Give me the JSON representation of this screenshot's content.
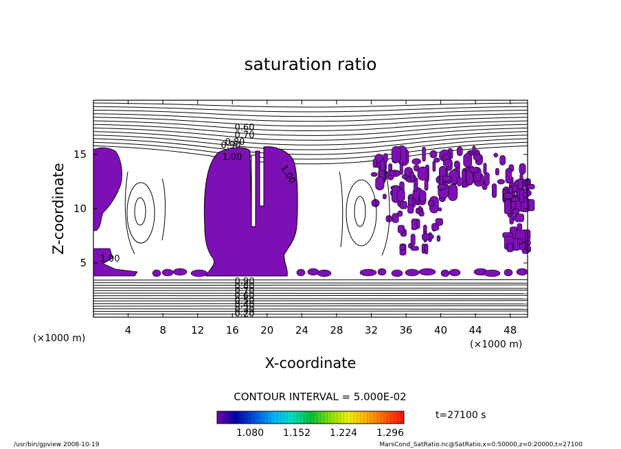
{
  "chart_data": {
    "type": "contour",
    "title": "saturation ratio",
    "xlabel": "X-coordinate",
    "ylabel": "Z-coordinate",
    "x_unit_left": "(×1000 m)",
    "x_unit_right": "(×1000 m)",
    "xlim": [
      0,
      50
    ],
    "ylim": [
      0,
      20
    ],
    "x_ticks": [
      "4",
      "8",
      "12",
      "16",
      "20",
      "24",
      "28",
      "32",
      "36",
      "40",
      "44",
      "48"
    ],
    "y_ticks": [
      "5",
      "10",
      "15"
    ],
    "contour_labels": [
      "0.60",
      "0.70",
      "0.80",
      "0.90",
      "1.00",
      "1.00",
      "1.00",
      "0.90",
      "0.80",
      "0.70",
      "0.60",
      "0.50",
      "0.40",
      "0.30",
      "0.20"
    ],
    "contour_interval": "CONTOUR INTERVAL = 5.000E-02",
    "colorbar": {
      "tick_labels": [
        "1.080",
        "1.152",
        "1.224",
        "1.296"
      ],
      "colors": [
        "#7a00b0",
        "#0000a8",
        "#0050e0",
        "#00b0ff",
        "#00e0c0",
        "#00c040",
        "#80e000",
        "#f0f000",
        "#ffb000",
        "#ff6000",
        "#ff1010"
      ]
    },
    "fill_color": "#7c10b4",
    "time_label": "t=27100 s"
  },
  "footer": {
    "left": "/usr/bin/gpview   2008-10-19",
    "right": "MarsCond_SatRatio.nc@SatRatio,x=0:50000,z=0:20000,t=27100"
  }
}
